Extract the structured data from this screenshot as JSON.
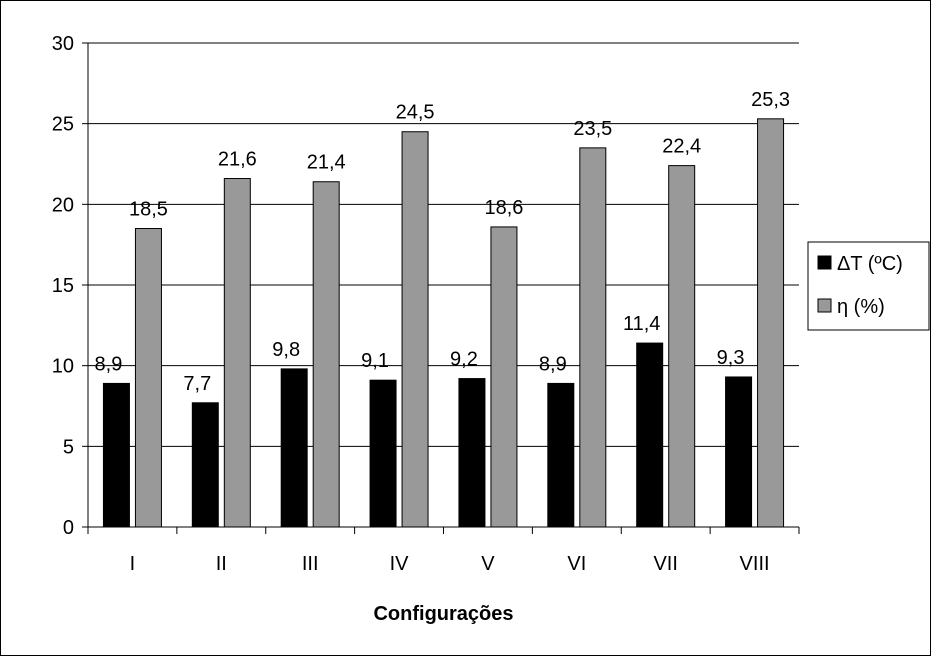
{
  "chart_data": {
    "type": "bar",
    "categories": [
      "I",
      "II",
      "III",
      "IV",
      "V",
      "VI",
      "VII",
      "VIII"
    ],
    "series": [
      {
        "name": "ΔT (ºC)",
        "values": [
          8.9,
          7.7,
          9.8,
          9.1,
          9.2,
          8.9,
          11.4,
          9.3
        ],
        "labels": [
          "8,9",
          "7,7",
          "9,8",
          "9,1",
          "9,2",
          "8,9",
          "11,4",
          "9,3"
        ],
        "color": "#000000"
      },
      {
        "name": "η (%)",
        "values": [
          18.5,
          21.6,
          21.4,
          24.5,
          18.6,
          23.5,
          22.4,
          25.3
        ],
        "labels": [
          "18,5",
          "21,6",
          "21,4",
          "24,5",
          "18,6",
          "23,5",
          "22,4",
          "25,3"
        ],
        "color": "#999999"
      }
    ],
    "xlabel": "Configurações",
    "ylabel": "",
    "ylim": [
      0,
      30
    ],
    "yticks": [
      "0",
      "5",
      "10",
      "15",
      "20",
      "25",
      "30"
    ],
    "grid": true,
    "legend_position": "right"
  }
}
